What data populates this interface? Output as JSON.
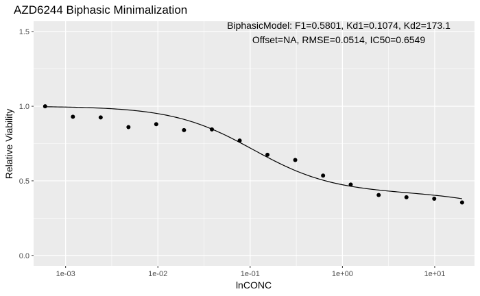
{
  "chart_data": {
    "type": "scatter",
    "title": "AZD6244 Biphasic Minimalization",
    "xlabel": "lnCONC",
    "ylabel": "Relative Viability",
    "x_scale": "log10",
    "xlim": [
      0.00045,
      27
    ],
    "ylim": [
      -0.07,
      1.57
    ],
    "x_ticks": [
      0.001,
      0.01,
      0.1,
      1,
      10
    ],
    "x_tick_labels": [
      "1e-03",
      "1e-02",
      "1e-01",
      "1e+00",
      "1e+01"
    ],
    "y_ticks": [
      0.0,
      0.5,
      1.0,
      1.5
    ],
    "y_tick_labels": [
      "0.0",
      "0.5",
      "1.0",
      "1.5"
    ],
    "grid": true,
    "annotation_lines": [
      "BiphasicModel: F1=0.5801, Kd1=0.1074, Kd2=173.1",
      "Offset=NA, RMSE=0.0514, IC50=0.6549"
    ],
    "series": [
      {
        "type": "scatter",
        "x": [
          0.0006,
          0.0012,
          0.0024,
          0.0048,
          0.0096,
          0.0192,
          0.0385,
          0.077,
          0.154,
          0.308,
          0.617,
          1.23,
          2.47,
          4.94,
          9.88,
          19.8
        ],
        "y": [
          1.0,
          0.93,
          0.925,
          0.86,
          0.88,
          0.84,
          0.845,
          0.77,
          0.675,
          0.64,
          0.535,
          0.475,
          0.405,
          0.39,
          0.38,
          0.355
        ]
      },
      {
        "type": "line",
        "model": "biphasic",
        "F1": 0.5801,
        "Kd1": 0.1074,
        "Kd2": 173.1,
        "x_range": [
          0.0006,
          19.8
        ]
      }
    ]
  }
}
